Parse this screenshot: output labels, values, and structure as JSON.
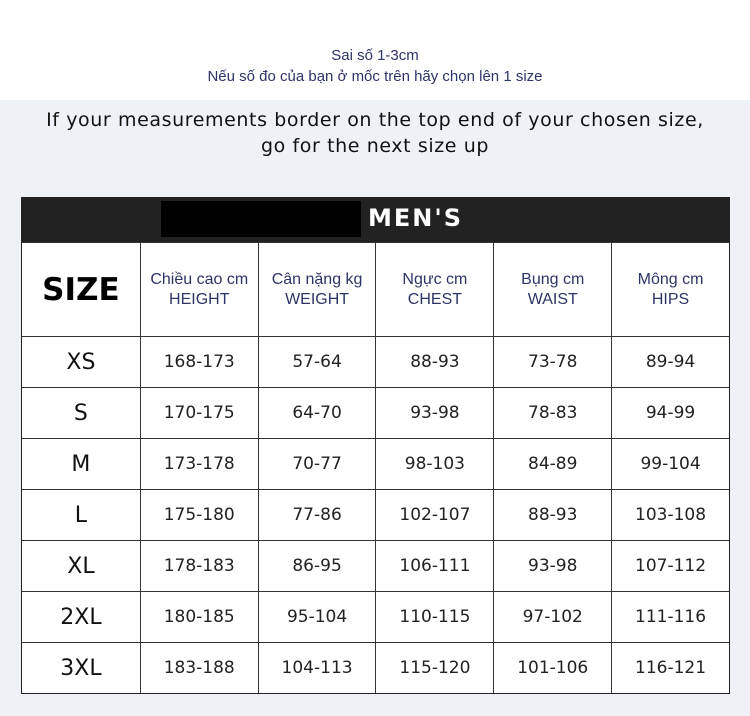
{
  "notice": {
    "vi_line1": "Sai số 1-3cm",
    "vi_line2": "Nếu số đo của bạn ở mốc trên hãy chọn lên 1 size",
    "en_line1": "If your measurements border on the top end of your chosen size,",
    "en_line2": "go for the next size up"
  },
  "table": {
    "title": "MEN'S",
    "size_header": "SIZE",
    "columns": [
      {
        "vi": "Chiều cao cm",
        "en": "HEIGHT"
      },
      {
        "vi": "Cân nặng kg",
        "en": "WEIGHT"
      },
      {
        "vi": "Ngực cm",
        "en": "CHEST"
      },
      {
        "vi": "Bụng cm",
        "en": "WAIST"
      },
      {
        "vi": "Mông cm",
        "en": "HIPS"
      }
    ],
    "rows": [
      [
        "XS",
        "168-173",
        "57-64",
        "88-93",
        "73-78",
        "89-94"
      ],
      [
        "S",
        "170-175",
        "64-70",
        "93-98",
        "78-83",
        "94-99"
      ],
      [
        "M",
        "173-178",
        "70-77",
        "98-103",
        "84-89",
        "99-104"
      ],
      [
        "L",
        "175-180",
        "77-86",
        "102-107",
        "88-93",
        "103-108"
      ],
      [
        "XL",
        "178-183",
        "86-95",
        "106-111",
        "93-98",
        "107-112"
      ],
      [
        "2XL",
        "180-185",
        "95-104",
        "110-115",
        "97-102",
        "111-116"
      ],
      [
        "3XL",
        "183-188",
        "104-113",
        "115-120",
        "101-106",
        "116-121"
      ]
    ]
  }
}
